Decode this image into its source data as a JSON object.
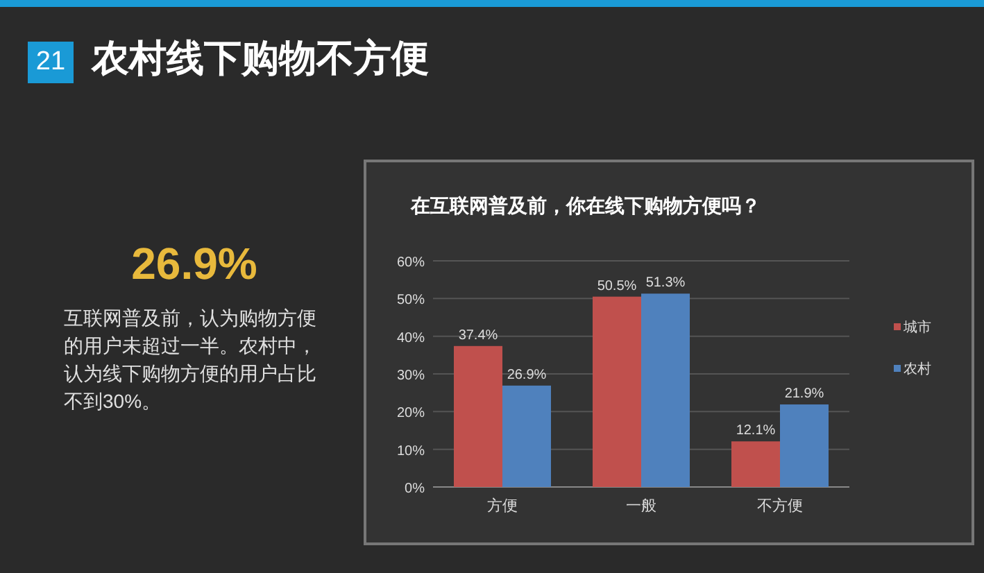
{
  "chart_data": {
    "type": "bar",
    "title": "在互联网普及前，你在线下购物方便吗？",
    "categories": [
      "方便",
      "一般",
      "不方便"
    ],
    "series": [
      {
        "name": "城市",
        "color": "#c0504d",
        "values": [
          37.4,
          50.5,
          12.1
        ],
        "value_labels": [
          "37.4%",
          "50.5%",
          "12.1%"
        ]
      },
      {
        "name": "农村",
        "color": "#4f81bd",
        "values": [
          26.9,
          51.3,
          21.9
        ],
        "value_labels": [
          "26.9%",
          "51.3%",
          "21.9%"
        ]
      }
    ],
    "ylim": [
      0,
      60
    ],
    "yticks": [
      {
        "value": 0,
        "label": "0%"
      },
      {
        "value": 10,
        "label": "10%"
      },
      {
        "value": 20,
        "label": "20%"
      },
      {
        "value": 30,
        "label": "30%"
      },
      {
        "value": 40,
        "label": "40%"
      },
      {
        "value": 50,
        "label": "50%"
      },
      {
        "value": 60,
        "label": "60%"
      }
    ],
    "grid": "y",
    "legend": "right",
    "annotations": [
      "21",
      "农村线下购物不方便",
      "26.9%",
      "互联网普及前，认为购物方便的用户未超过一半。农村中，认为线下购物方便的用户占比不到30%。"
    ]
  }
}
